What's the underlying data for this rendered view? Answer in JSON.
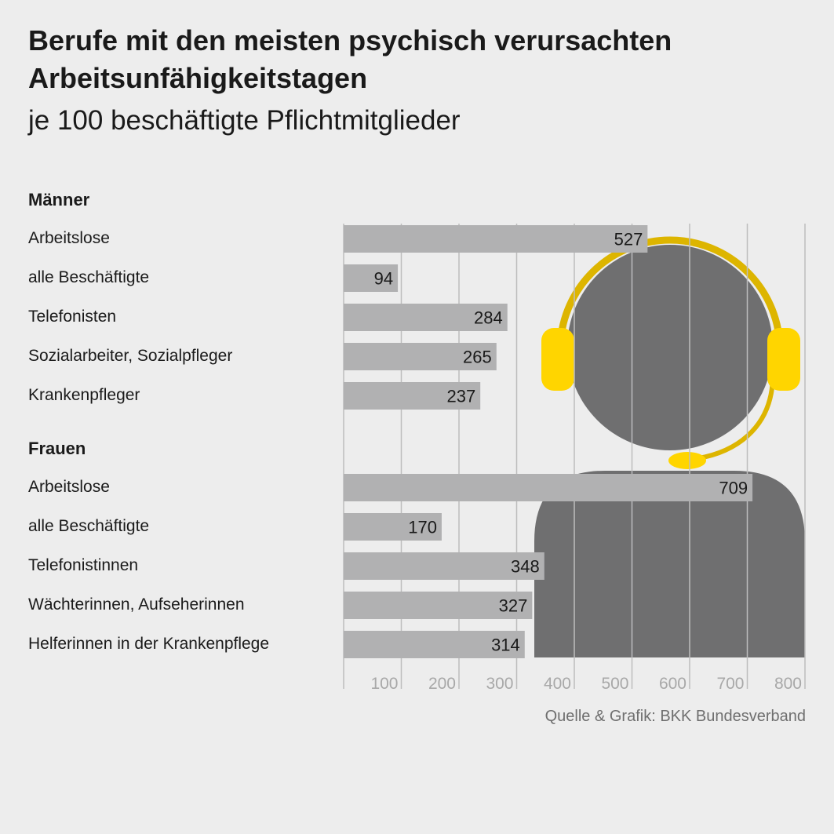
{
  "title": "Berufe mit den meisten psychisch verursachten Arbeitsunfähigkeitstagen",
  "subtitle": "je 100 beschäftigte Pflichtmitglieder",
  "source": "Quelle & Grafik: BKK Bundesverband",
  "colors": {
    "background": "#ededed",
    "bar": "#b1b1b2",
    "grid": "#bdbdbd",
    "figure": "#6f6f70",
    "headset": "#ddb500",
    "earpad": "#ffd500"
  },
  "illustration": {
    "icon": "person-with-headset-icon"
  },
  "chart_data": {
    "type": "bar",
    "orientation": "horizontal",
    "title": "Berufe mit den meisten psychisch verursachten Arbeitsunfähigkeitstagen",
    "subtitle": "je 100 beschäftigte Pflichtmitglieder",
    "xlim": [
      0,
      800
    ],
    "ticks": [
      100,
      200,
      300,
      400,
      500,
      600,
      700,
      800
    ],
    "grid": true,
    "groups": [
      {
        "name": "Männer",
        "categories": [
          "Arbeitslose",
          "alle Beschäftigte",
          "Telefonisten",
          "Sozialarbeiter, Sozialpfleger",
          "Krankenpfleger"
        ],
        "values": [
          527,
          94,
          284,
          265,
          237
        ]
      },
      {
        "name": "Frauen",
        "categories": [
          "Arbeitslose",
          "alle Beschäftigte",
          "Telefonistinnen",
          "Wächterinnen, Aufseherinnen",
          "Helferinnen in der Krankenpflege"
        ],
        "values": [
          709,
          170,
          348,
          327,
          314
        ]
      }
    ]
  }
}
